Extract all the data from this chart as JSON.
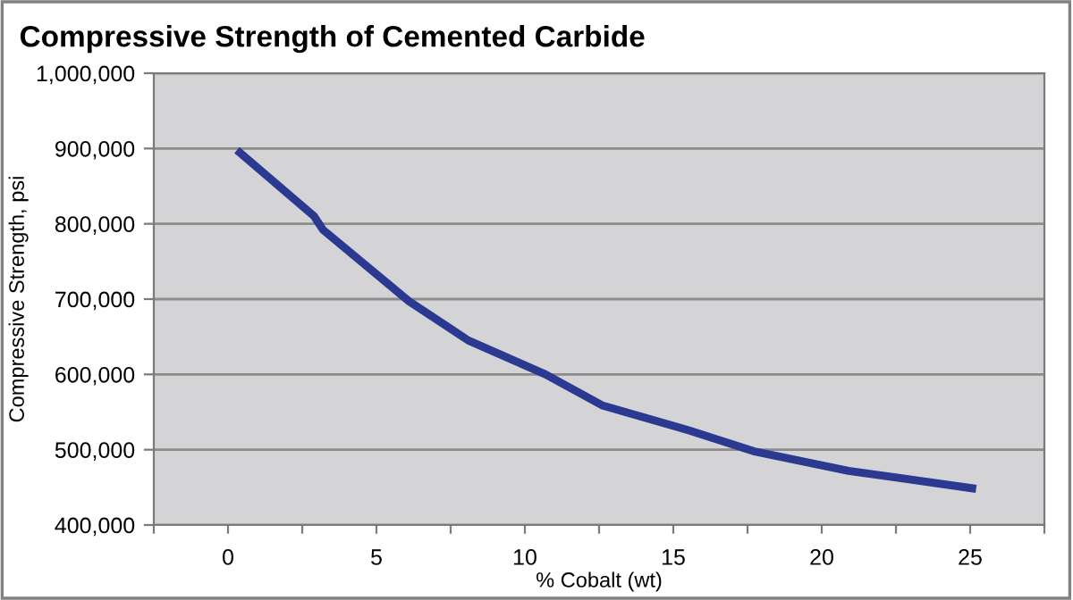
{
  "chart_data": {
    "type": "line",
    "title": "Compressive Strength of Cemented Carbide",
    "xlabel": "% Cobalt (wt)",
    "ylabel": "Compressive Strength, psi",
    "x": [
      0.3,
      2.9,
      3.2,
      6.1,
      8.1,
      10.7,
      12.6,
      15.5,
      17.7,
      20.9,
      25.2
    ],
    "series": [
      {
        "color": "#2b3990",
        "values": [
          898000,
          810000,
          792000,
          697000,
          645000,
          600000,
          559000,
          526000,
          498000,
          472000,
          448000
        ]
      }
    ],
    "xlim": [
      -2.5,
      27.5
    ],
    "xticks": [
      {
        "value": -2.5,
        "label": null
      },
      0,
      {
        "value": 2.5,
        "label": null
      },
      5,
      {
        "value": 7.5,
        "label": null
      },
      10,
      {
        "value": 12.5,
        "label": null
      },
      15,
      {
        "value": 17.5,
        "label": null
      },
      20,
      {
        "value": 22.5,
        "label": null
      },
      25,
      {
        "value": 27.5,
        "label": null
      }
    ],
    "ylim": [
      400000,
      1000000
    ],
    "yticks": [
      {
        "value": 400000,
        "label": "400,000"
      },
      {
        "value": 500000,
        "label": "500,000"
      },
      {
        "value": 600000,
        "label": "600,000"
      },
      {
        "value": 700000,
        "label": "700,000"
      },
      {
        "value": 800000,
        "label": "800,000"
      },
      {
        "value": 900000,
        "label": "900,000"
      },
      {
        "value": 1000000,
        "label": "1,000,000"
      }
    ],
    "grid": "y",
    "marker": "none",
    "line_style": "solid"
  }
}
